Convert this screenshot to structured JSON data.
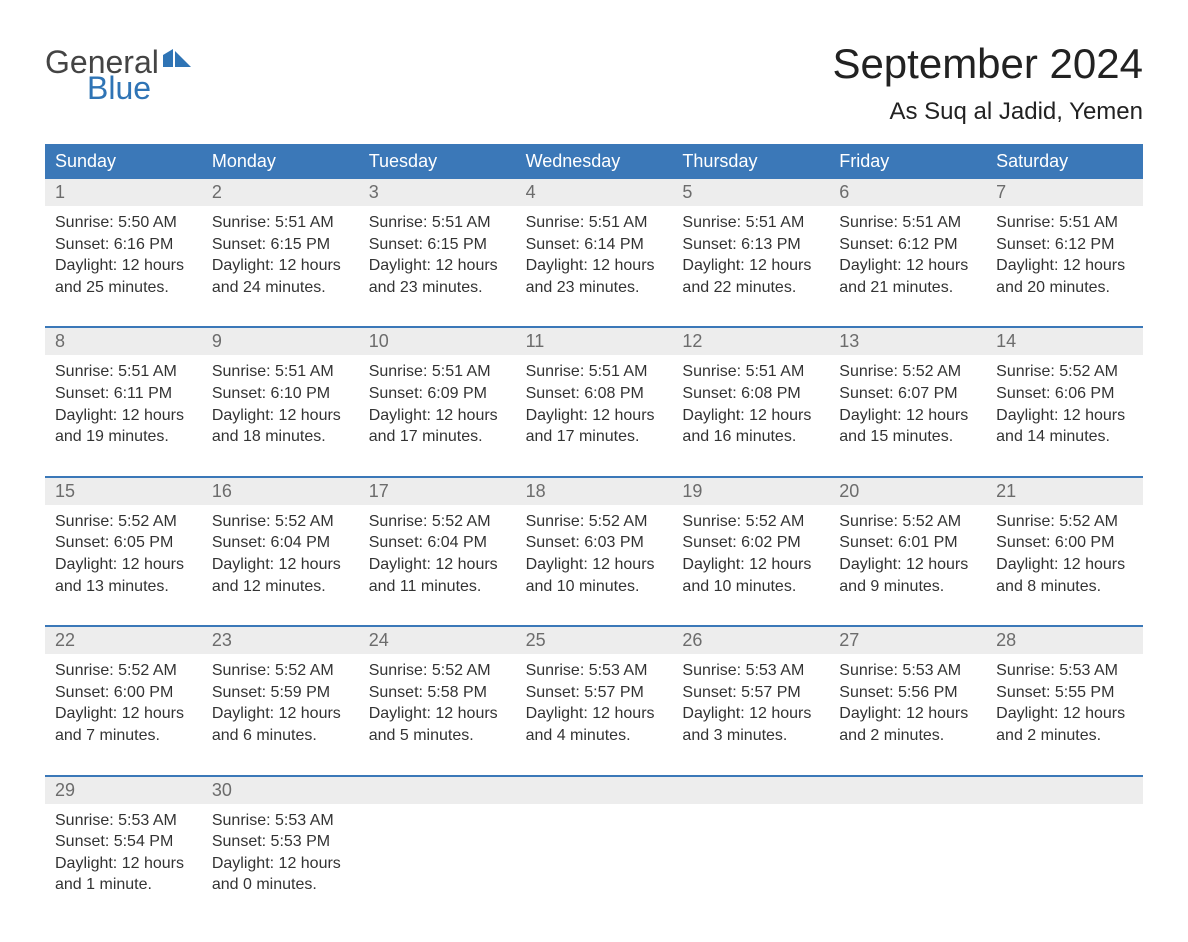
{
  "logo": {
    "word1": "General",
    "word2": "Blue",
    "flag_color": "#2f74b5",
    "text1_color": "#444444",
    "text2_color": "#2f74b5"
  },
  "title": "September 2024",
  "location": "As Suq al Jadid, Yemen",
  "colors": {
    "header_bg": "#3b78b8",
    "header_text": "#ffffff",
    "daynum_bg": "#ededed",
    "daynum_text": "#6c6c6c",
    "body_text": "#333333",
    "week_border": "#3b78b8",
    "page_bg": "#ffffff"
  },
  "weekdays": [
    "Sunday",
    "Monday",
    "Tuesday",
    "Wednesday",
    "Thursday",
    "Friday",
    "Saturday"
  ],
  "weeks": [
    [
      {
        "n": "1",
        "sunrise": "Sunrise: 5:50 AM",
        "sunset": "Sunset: 6:16 PM",
        "daylight": "Daylight: 12 hours and 25 minutes."
      },
      {
        "n": "2",
        "sunrise": "Sunrise: 5:51 AM",
        "sunset": "Sunset: 6:15 PM",
        "daylight": "Daylight: 12 hours and 24 minutes."
      },
      {
        "n": "3",
        "sunrise": "Sunrise: 5:51 AM",
        "sunset": "Sunset: 6:15 PM",
        "daylight": "Daylight: 12 hours and 23 minutes."
      },
      {
        "n": "4",
        "sunrise": "Sunrise: 5:51 AM",
        "sunset": "Sunset: 6:14 PM",
        "daylight": "Daylight: 12 hours and 23 minutes."
      },
      {
        "n": "5",
        "sunrise": "Sunrise: 5:51 AM",
        "sunset": "Sunset: 6:13 PM",
        "daylight": "Daylight: 12 hours and 22 minutes."
      },
      {
        "n": "6",
        "sunrise": "Sunrise: 5:51 AM",
        "sunset": "Sunset: 6:12 PM",
        "daylight": "Daylight: 12 hours and 21 minutes."
      },
      {
        "n": "7",
        "sunrise": "Sunrise: 5:51 AM",
        "sunset": "Sunset: 6:12 PM",
        "daylight": "Daylight: 12 hours and 20 minutes."
      }
    ],
    [
      {
        "n": "8",
        "sunrise": "Sunrise: 5:51 AM",
        "sunset": "Sunset: 6:11 PM",
        "daylight": "Daylight: 12 hours and 19 minutes."
      },
      {
        "n": "9",
        "sunrise": "Sunrise: 5:51 AM",
        "sunset": "Sunset: 6:10 PM",
        "daylight": "Daylight: 12 hours and 18 minutes."
      },
      {
        "n": "10",
        "sunrise": "Sunrise: 5:51 AM",
        "sunset": "Sunset: 6:09 PM",
        "daylight": "Daylight: 12 hours and 17 minutes."
      },
      {
        "n": "11",
        "sunrise": "Sunrise: 5:51 AM",
        "sunset": "Sunset: 6:08 PM",
        "daylight": "Daylight: 12 hours and 17 minutes."
      },
      {
        "n": "12",
        "sunrise": "Sunrise: 5:51 AM",
        "sunset": "Sunset: 6:08 PM",
        "daylight": "Daylight: 12 hours and 16 minutes."
      },
      {
        "n": "13",
        "sunrise": "Sunrise: 5:52 AM",
        "sunset": "Sunset: 6:07 PM",
        "daylight": "Daylight: 12 hours and 15 minutes."
      },
      {
        "n": "14",
        "sunrise": "Sunrise: 5:52 AM",
        "sunset": "Sunset: 6:06 PM",
        "daylight": "Daylight: 12 hours and 14 minutes."
      }
    ],
    [
      {
        "n": "15",
        "sunrise": "Sunrise: 5:52 AM",
        "sunset": "Sunset: 6:05 PM",
        "daylight": "Daylight: 12 hours and 13 minutes."
      },
      {
        "n": "16",
        "sunrise": "Sunrise: 5:52 AM",
        "sunset": "Sunset: 6:04 PM",
        "daylight": "Daylight: 12 hours and 12 minutes."
      },
      {
        "n": "17",
        "sunrise": "Sunrise: 5:52 AM",
        "sunset": "Sunset: 6:04 PM",
        "daylight": "Daylight: 12 hours and 11 minutes."
      },
      {
        "n": "18",
        "sunrise": "Sunrise: 5:52 AM",
        "sunset": "Sunset: 6:03 PM",
        "daylight": "Daylight: 12 hours and 10 minutes."
      },
      {
        "n": "19",
        "sunrise": "Sunrise: 5:52 AM",
        "sunset": "Sunset: 6:02 PM",
        "daylight": "Daylight: 12 hours and 10 minutes."
      },
      {
        "n": "20",
        "sunrise": "Sunrise: 5:52 AM",
        "sunset": "Sunset: 6:01 PM",
        "daylight": "Daylight: 12 hours and 9 minutes."
      },
      {
        "n": "21",
        "sunrise": "Sunrise: 5:52 AM",
        "sunset": "Sunset: 6:00 PM",
        "daylight": "Daylight: 12 hours and 8 minutes."
      }
    ],
    [
      {
        "n": "22",
        "sunrise": "Sunrise: 5:52 AM",
        "sunset": "Sunset: 6:00 PM",
        "daylight": "Daylight: 12 hours and 7 minutes."
      },
      {
        "n": "23",
        "sunrise": "Sunrise: 5:52 AM",
        "sunset": "Sunset: 5:59 PM",
        "daylight": "Daylight: 12 hours and 6 minutes."
      },
      {
        "n": "24",
        "sunrise": "Sunrise: 5:52 AM",
        "sunset": "Sunset: 5:58 PM",
        "daylight": "Daylight: 12 hours and 5 minutes."
      },
      {
        "n": "25",
        "sunrise": "Sunrise: 5:53 AM",
        "sunset": "Sunset: 5:57 PM",
        "daylight": "Daylight: 12 hours and 4 minutes."
      },
      {
        "n": "26",
        "sunrise": "Sunrise: 5:53 AM",
        "sunset": "Sunset: 5:57 PM",
        "daylight": "Daylight: 12 hours and 3 minutes."
      },
      {
        "n": "27",
        "sunrise": "Sunrise: 5:53 AM",
        "sunset": "Sunset: 5:56 PM",
        "daylight": "Daylight: 12 hours and 2 minutes."
      },
      {
        "n": "28",
        "sunrise": "Sunrise: 5:53 AM",
        "sunset": "Sunset: 5:55 PM",
        "daylight": "Daylight: 12 hours and 2 minutes."
      }
    ],
    [
      {
        "n": "29",
        "sunrise": "Sunrise: 5:53 AM",
        "sunset": "Sunset: 5:54 PM",
        "daylight": "Daylight: 12 hours and 1 minute."
      },
      {
        "n": "30",
        "sunrise": "Sunrise: 5:53 AM",
        "sunset": "Sunset: 5:53 PM",
        "daylight": "Daylight: 12 hours and 0 minutes."
      },
      null,
      null,
      null,
      null,
      null
    ]
  ]
}
